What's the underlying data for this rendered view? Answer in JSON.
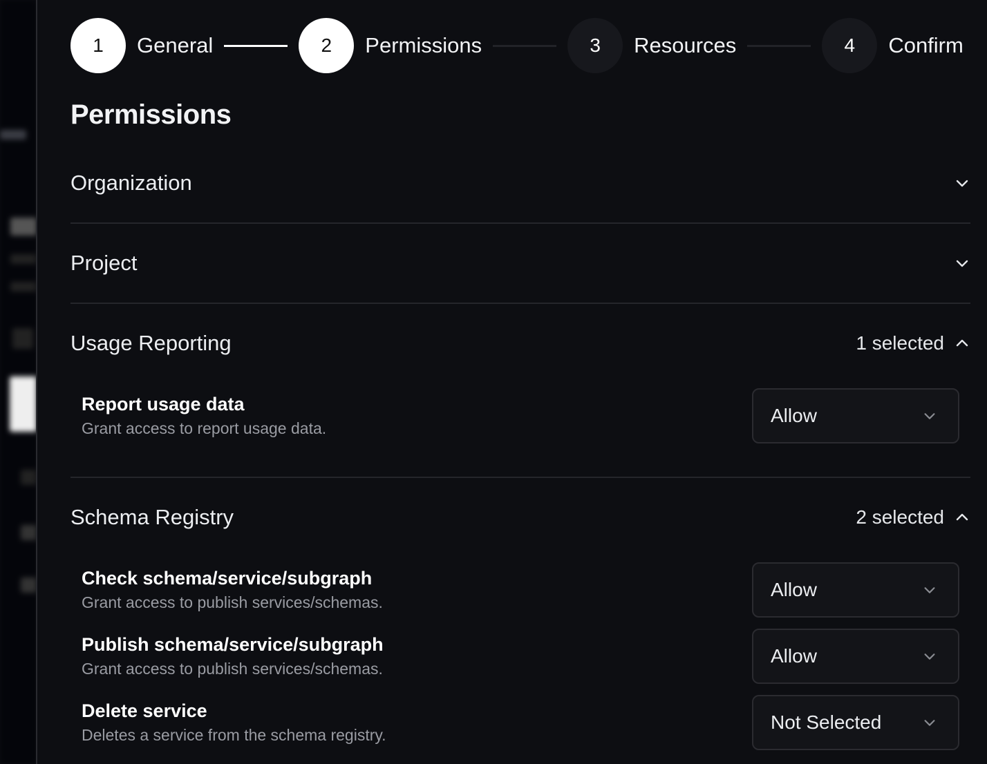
{
  "stepper": [
    {
      "number": "1",
      "label": "General",
      "state": "complete"
    },
    {
      "number": "2",
      "label": "Permissions",
      "state": "current"
    },
    {
      "number": "3",
      "label": "Resources",
      "state": "upcoming"
    },
    {
      "number": "4",
      "label": "Confirm",
      "state": "upcoming"
    }
  ],
  "page_title": "Permissions",
  "sections": [
    {
      "title": "Organization",
      "expanded": false,
      "selected_text": "",
      "items": []
    },
    {
      "title": "Project",
      "expanded": false,
      "selected_text": "",
      "items": []
    },
    {
      "title": "Usage Reporting",
      "expanded": true,
      "selected_text": "1 selected",
      "items": [
        {
          "title": "Report usage data",
          "description": "Grant access to report usage data.",
          "value": "Allow"
        }
      ]
    },
    {
      "title": "Schema Registry",
      "expanded": true,
      "selected_text": "2 selected",
      "items": [
        {
          "title": "Check schema/service/subgraph",
          "description": "Grant access to publish services/schemas.",
          "value": "Allow"
        },
        {
          "title": "Publish schema/service/subgraph",
          "description": "Grant access to publish services/schemas.",
          "value": "Allow"
        },
        {
          "title": "Delete service",
          "description": "Deletes a service from the schema registry.",
          "value": "Not Selected"
        }
      ]
    }
  ],
  "colors": {
    "background": "#0d0e12",
    "step_complete": "#ffffff",
    "step_upcoming": "#17181d",
    "divider": "#25262b"
  }
}
